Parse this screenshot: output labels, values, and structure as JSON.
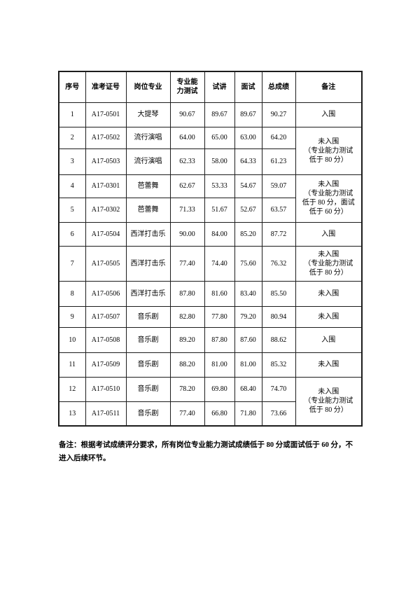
{
  "table": {
    "headers": {
      "seq": "序号",
      "exam_id": "准考证号",
      "major": "岗位专业",
      "ability_test": "专业能力测试",
      "lecture": "试讲",
      "interview": "面试",
      "total": "总成绩",
      "remark": "备注"
    },
    "rows": [
      {
        "no": "1",
        "id": "A17-0501",
        "major": "大提琴",
        "test": "90.67",
        "lecture": "89.67",
        "interview": "89.67",
        "total": "90.27",
        "remark": "入围"
      },
      {
        "no": "2",
        "id": "A17-0502",
        "major": "流行演唱",
        "test": "64.00",
        "lecture": "65.00",
        "interview": "63.00",
        "total": "64.20",
        "remark": "未入围\n（专业能力测试\n低于 80 分）"
      },
      {
        "no": "3",
        "id": "A17-0503",
        "major": "流行演唱",
        "test": "62.33",
        "lecture": "58.00",
        "interview": "64.33",
        "total": "61.23"
      },
      {
        "no": "4",
        "id": "A17-0301",
        "major": "芭蕾舞",
        "test": "62.67",
        "lecture": "53.33",
        "interview": "54.67",
        "total": "59.07",
        "remark": "未入围\n（专业能力测试\n低于 80 分，面试\n低于 60 分）"
      },
      {
        "no": "5",
        "id": "A17-0302",
        "major": "芭蕾舞",
        "test": "71.33",
        "lecture": "51.67",
        "interview": "52.67",
        "total": "63.57"
      },
      {
        "no": "6",
        "id": "A17-0504",
        "major": "西洋打击乐",
        "test": "90.00",
        "lecture": "84.00",
        "interview": "85.20",
        "total": "87.72",
        "remark": "入围"
      },
      {
        "no": "7",
        "id": "A17-0505",
        "major": "西洋打击乐",
        "test": "77.40",
        "lecture": "74.40",
        "interview": "75.60",
        "total": "76.32",
        "remark": "未入围\n（专业能力测试\n低于 80 分）"
      },
      {
        "no": "8",
        "id": "A17-0506",
        "major": "西洋打击乐",
        "test": "87.80",
        "lecture": "81.60",
        "interview": "83.40",
        "total": "85.50",
        "remark": "未入围"
      },
      {
        "no": "9",
        "id": "A17-0507",
        "major": "音乐剧",
        "test": "82.80",
        "lecture": "77.80",
        "interview": "79.20",
        "total": "80.94",
        "remark": "未入围"
      },
      {
        "no": "10",
        "id": "A17-0508",
        "major": "音乐剧",
        "test": "89.20",
        "lecture": "87.80",
        "interview": "87.60",
        "total": "88.62",
        "remark": "入围"
      },
      {
        "no": "11",
        "id": "A17-0509",
        "major": "音乐剧",
        "test": "88.20",
        "lecture": "81.00",
        "interview": "81.00",
        "total": "85.32",
        "remark": "未入围"
      },
      {
        "no": "12",
        "id": "A17-0510",
        "major": "音乐剧",
        "test": "78.20",
        "lecture": "69.80",
        "interview": "68.40",
        "total": "74.70",
        "remark": "未入围\n（专业能力测试\n低于 80 分）"
      },
      {
        "no": "13",
        "id": "A17-0511",
        "major": "音乐剧",
        "test": "77.40",
        "lecture": "66.80",
        "interview": "71.80",
        "total": "73.66"
      }
    ]
  },
  "footnote": "备注：根据考试成绩评分要求，所有岗位专业能力测试成绩低于 80 分或面试低于 60 分，不\n进入后续环节。"
}
